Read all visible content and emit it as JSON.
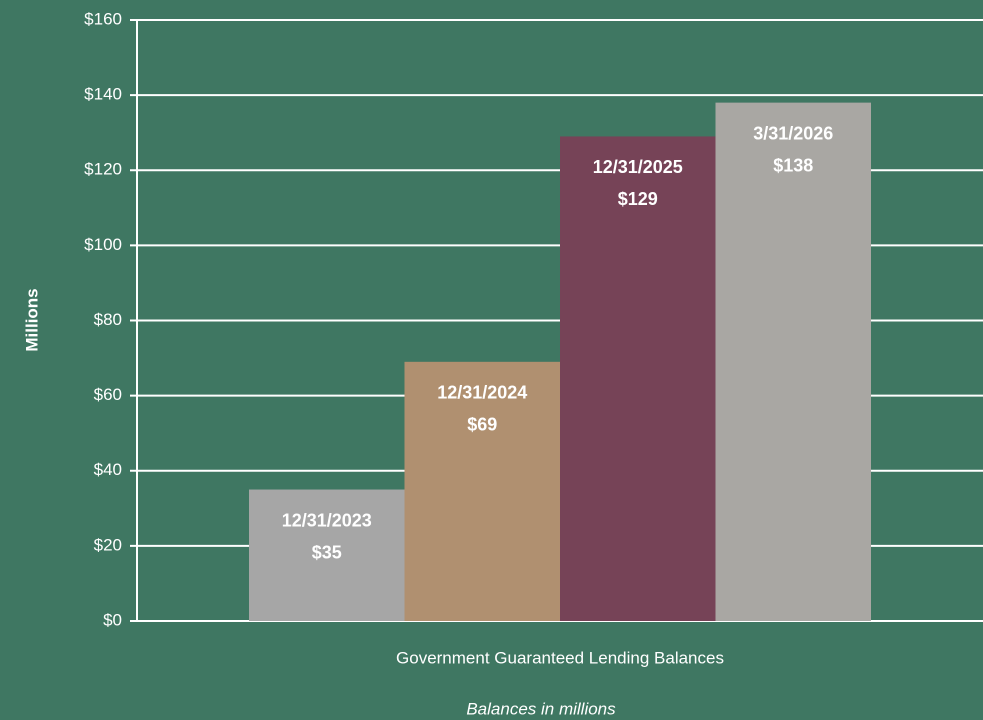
{
  "chart_data": {
    "type": "bar",
    "y_label": "Millions",
    "footnote": "Balances in millions",
    "categories": [
      "Government Guaranteed Lending Balances"
    ],
    "series": [
      {
        "name": "12/31/2023",
        "color": "#a6a6a6",
        "values": [
          35
        ],
        "value_labels": [
          "$35"
        ]
      },
      {
        "name": "12/31/2024",
        "color": "#b09070",
        "values": [
          69
        ],
        "value_labels": [
          "$69"
        ]
      },
      {
        "name": "12/31/2025",
        "color": "#764357",
        "values": [
          129
        ],
        "value_labels": [
          "$129"
        ]
      },
      {
        "name": "3/31/2026",
        "color": "#a9a7a3",
        "values": [
          138
        ],
        "value_labels": [
          "$138"
        ]
      }
    ],
    "ylim": [
      0,
      160
    ],
    "yticks": [
      {
        "value": 0,
        "label": "$0"
      },
      {
        "value": 20,
        "label": "$20"
      },
      {
        "value": 40,
        "label": "$40"
      },
      {
        "value": 60,
        "label": "$60"
      },
      {
        "value": 80,
        "label": "$80"
      },
      {
        "value": 100,
        "label": "$100"
      },
      {
        "value": 120,
        "label": "$120"
      },
      {
        "value": 140,
        "label": "$140"
      },
      {
        "value": 160,
        "label": "$160"
      }
    ],
    "grid": true,
    "background": "#3f7762"
  }
}
